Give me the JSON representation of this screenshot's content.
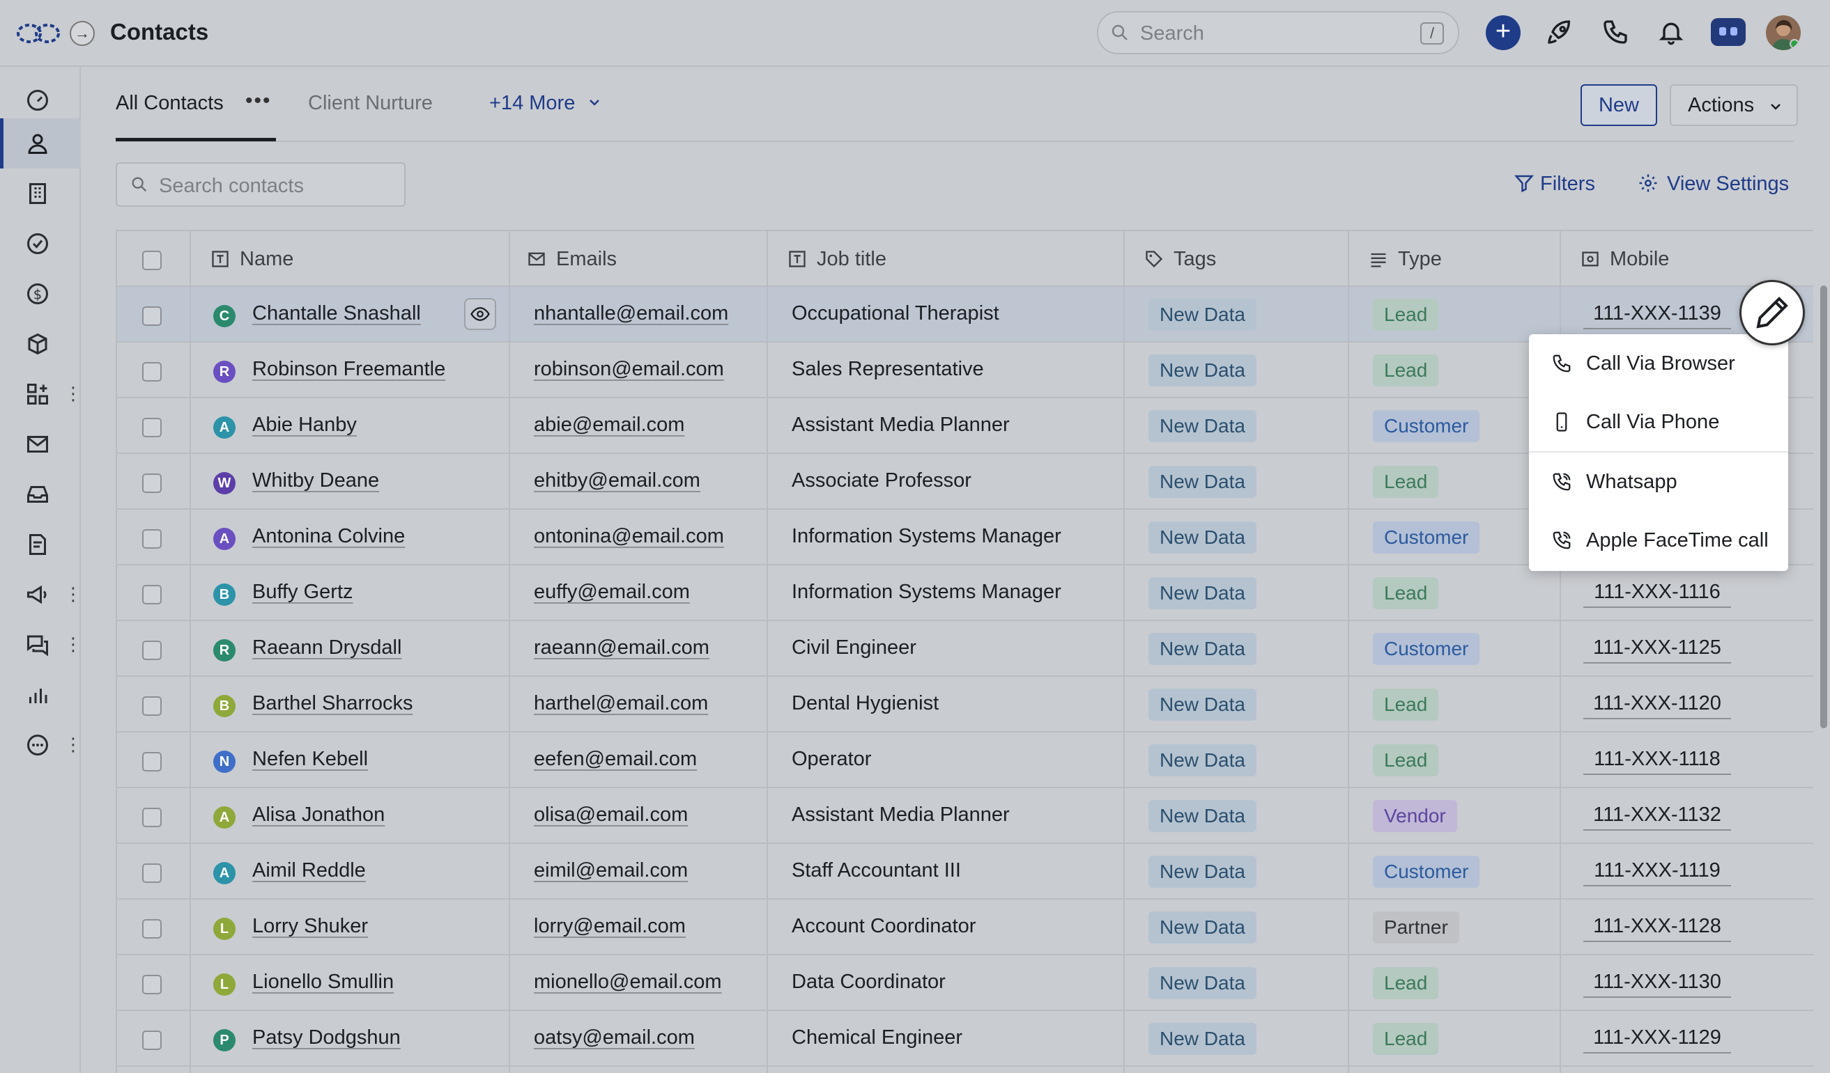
{
  "app": {
    "title": "Contacts"
  },
  "search": {
    "placeholder": "Search",
    "shortcut": "/"
  },
  "top_icons": [
    "plus-icon",
    "rocket-icon",
    "phone-icon",
    "bell-icon",
    "bot-icon",
    "avatar"
  ],
  "sidebar": {
    "items": [
      {
        "name": "dashboard",
        "icon": "gauge-icon"
      },
      {
        "name": "contacts",
        "icon": "person-icon",
        "active": true
      },
      {
        "name": "companies",
        "icon": "building-icon"
      },
      {
        "name": "tasks",
        "icon": "check-circle-icon"
      },
      {
        "name": "deals",
        "icon": "dollar-icon"
      },
      {
        "name": "products",
        "icon": "cube-icon"
      },
      {
        "name": "apps",
        "icon": "grid-plus-icon"
      },
      {
        "name": "email",
        "icon": "mail-icon"
      },
      {
        "name": "inbox",
        "icon": "inbox-icon"
      },
      {
        "name": "documents",
        "icon": "doc-icon"
      },
      {
        "name": "campaigns",
        "icon": "megaphone-icon"
      },
      {
        "name": "chats",
        "icon": "chat-icon"
      },
      {
        "name": "reports",
        "icon": "bar-chart-icon"
      },
      {
        "name": "more",
        "icon": "more-circle-icon"
      }
    ]
  },
  "tabs": [
    {
      "label": "All Contacts",
      "active": true
    },
    {
      "label": "Client Nurture",
      "active": false
    }
  ],
  "more_tabs": "+14 More",
  "toolbar": {
    "new_label": "New",
    "actions_label": "Actions",
    "filters_label": "Filters",
    "view_settings_label": "View Settings"
  },
  "contacts_search": {
    "placeholder": "Search contacts"
  },
  "table": {
    "columns": [
      "Name",
      "Emails",
      "Job title",
      "Tags",
      "Type",
      "Mobile"
    ],
    "rows": [
      {
        "initial": "C",
        "avatar_color": "#2b8a6e",
        "name": "Chantalle Snashall",
        "email": "nhantalle@email.com",
        "job": "Occupational Therapist",
        "tag": "New Data",
        "type": "Lead",
        "mobile": "111-XXX-1139"
      },
      {
        "initial": "R",
        "avatar_color": "#6a4fc1",
        "name": "Robinson Freemantle",
        "email": "robinson@email.com",
        "job": "Sales Representative",
        "tag": "New Data",
        "type": "Lead",
        "mobile": ""
      },
      {
        "initial": "A",
        "avatar_color": "#2c93a8",
        "name": "Abie Hanby",
        "email": "abie@email.com",
        "job": "Assistant Media Planner",
        "tag": "New Data",
        "type": "Customer",
        "mobile": ""
      },
      {
        "initial": "W",
        "avatar_color": "#5b3ea8",
        "name": "Whitby Deane",
        "email": "ehitby@email.com",
        "job": "Associate Professor",
        "tag": "New Data",
        "type": "Lead",
        "mobile": ""
      },
      {
        "initial": "A",
        "avatar_color": "#6a4fc1",
        "name": "Antonina Colvine",
        "email": "ontonina@email.com",
        "job": "Information Systems Manager",
        "tag": "New Data",
        "type": "Customer",
        "mobile": ""
      },
      {
        "initial": "B",
        "avatar_color": "#2c93a8",
        "name": "Buffy Gertz",
        "email": "euffy@email.com",
        "job": "Information Systems Manager",
        "tag": "New Data",
        "type": "Lead",
        "mobile": "111-XXX-1116"
      },
      {
        "initial": "R",
        "avatar_color": "#2b8a6e",
        "name": "Raeann Drysdall",
        "email": "raeann@email.com",
        "job": "Civil Engineer",
        "tag": "New Data",
        "type": "Customer",
        "mobile": "111-XXX-1125"
      },
      {
        "initial": "B",
        "avatar_color": "#8fa83a",
        "name": "Barthel Sharrocks",
        "email": "harthel@email.com",
        "job": "Dental Hygienist",
        "tag": "New Data",
        "type": "Lead",
        "mobile": "111-XXX-1120"
      },
      {
        "initial": "N",
        "avatar_color": "#3f6fc9",
        "name": "Nefen Kebell",
        "email": "eefen@email.com",
        "job": "Operator",
        "tag": "New Data",
        "type": "Lead",
        "mobile": "111-XXX-1118"
      },
      {
        "initial": "A",
        "avatar_color": "#8fa83a",
        "name": "Alisa Jonathon",
        "email": "olisa@email.com",
        "job": "Assistant Media Planner",
        "tag": "New Data",
        "type": "Vendor",
        "mobile": "111-XXX-1132"
      },
      {
        "initial": "A",
        "avatar_color": "#2c93a8",
        "name": "Aimil Reddle",
        "email": "eimil@email.com",
        "job": "Staff Accountant III",
        "tag": "New Data",
        "type": "Customer",
        "mobile": "111-XXX-1119"
      },
      {
        "initial": "L",
        "avatar_color": "#8fa83a",
        "name": "Lorry Shuker",
        "email": "lorry@email.com",
        "job": "Account Coordinator",
        "tag": "New Data",
        "type": "Partner",
        "mobile": "111-XXX-1128"
      },
      {
        "initial": "L",
        "avatar_color": "#8fa83a",
        "name": "Lionello Smullin",
        "email": "mionello@email.com",
        "job": "Data Coordinator",
        "tag": "New Data",
        "type": "Lead",
        "mobile": "111-XXX-1130"
      },
      {
        "initial": "P",
        "avatar_color": "#2b8a6e",
        "name": "Patsy Dodgshun",
        "email": "oatsy@email.com",
        "job": "Chemical Engineer",
        "tag": "New Data",
        "type": "Lead",
        "mobile": "111-XXX-1129"
      }
    ]
  },
  "type_colors": {
    "Lead": {
      "bg": "#b4c9bf",
      "fg": "#3b7a5a"
    },
    "Customer": {
      "bg": "#b3c0d6",
      "fg": "#2c5a9e"
    },
    "Vendor": {
      "bg": "#c0b8d6",
      "fg": "#5e44a0"
    },
    "Partner": {
      "bg": "#bfc1c5",
      "fg": "#2d3035"
    }
  },
  "call_menu": {
    "items": [
      "Call Via Browser",
      "Call Via Phone",
      "Whatsapp",
      "Apple FaceTime call"
    ]
  },
  "colors": {
    "accent": "#1f3c88"
  }
}
